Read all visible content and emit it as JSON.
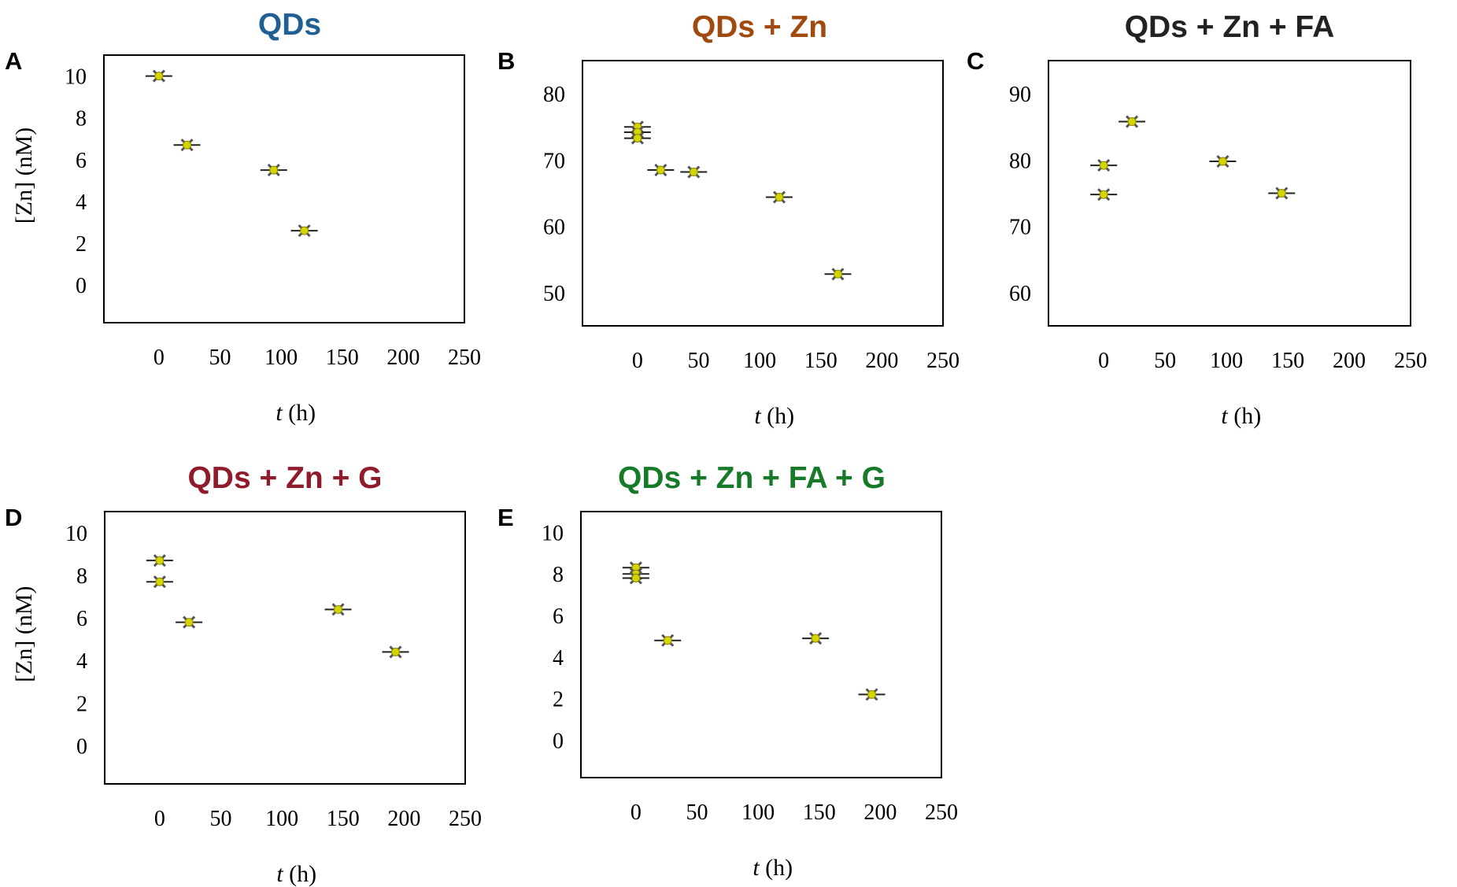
{
  "chart_data": [
    {
      "type": "scatter",
      "panel_label": "A",
      "title": "QDs",
      "title_color": "#1f5f94",
      "xlabel_var": "t",
      "xlabel_unit": " (h)",
      "ylabel": "[Zn] (nM)",
      "xticks": [
        0,
        50,
        100,
        150,
        200,
        250
      ],
      "yticks": [
        0,
        2,
        4,
        6,
        8,
        10
      ],
      "xlim": [
        -45,
        250
      ],
      "ylim": [
        -1.8,
        11
      ],
      "marker_color": "#d4d400",
      "series": [
        {
          "name": "[Zn]",
          "x": [
            0,
            23,
            94,
            119
          ],
          "y": [
            10.0,
            6.7,
            5.5,
            2.6
          ]
        }
      ]
    },
    {
      "type": "scatter",
      "panel_label": "B",
      "title": "QDs + Zn",
      "title_color": "#a14a10",
      "xlabel_var": "t",
      "xlabel_unit": " (h)",
      "ylabel": "",
      "xticks": [
        0,
        50,
        100,
        150,
        200,
        250
      ],
      "yticks": [
        50,
        60,
        70,
        80
      ],
      "xlim": [
        -45,
        250
      ],
      "ylim": [
        45,
        85
      ],
      "marker_color": "#d4d400",
      "series": [
        {
          "name": "[Zn]",
          "x": [
            0,
            0,
            0,
            19,
            46,
            116,
            164
          ],
          "y": [
            75.0,
            74.2,
            73.3,
            68.5,
            68.2,
            64.4,
            52.8
          ]
        }
      ]
    },
    {
      "type": "scatter",
      "panel_label": "C",
      "title": "QDs + Zn + FA",
      "title_color": "#222222",
      "xlabel_var": "t",
      "xlabel_unit": " (h)",
      "ylabel": "",
      "xticks": [
        0,
        50,
        100,
        150,
        200,
        250
      ],
      "yticks": [
        60,
        70,
        80,
        90
      ],
      "xlim": [
        -45,
        250
      ],
      "ylim": [
        55,
        95
      ],
      "marker_color": "#d4d400",
      "series": [
        {
          "name": "[Zn]",
          "x": [
            0,
            0,
            23,
            97,
            145
          ],
          "y": [
            79.2,
            74.8,
            85.8,
            79.8,
            75.0
          ]
        }
      ]
    },
    {
      "type": "scatter",
      "panel_label": "D",
      "title": "QDs + Zn + G",
      "title_color": "#8f1b2b",
      "xlabel_var": "t",
      "xlabel_unit": " (h)",
      "ylabel": "[Zn] (nM)",
      "xticks": [
        0,
        50,
        100,
        150,
        200,
        250
      ],
      "yticks": [
        0,
        2,
        4,
        6,
        8,
        10
      ],
      "xlim": [
        -45,
        250
      ],
      "ylim": [
        -1.8,
        11
      ],
      "marker_color": "#d4d400",
      "series": [
        {
          "name": "[Zn]",
          "x": [
            0,
            0,
            24,
            146,
            193
          ],
          "y": [
            8.7,
            7.7,
            5.8,
            6.4,
            4.4
          ]
        }
      ]
    },
    {
      "type": "scatter",
      "panel_label": "E",
      "title": "QDs + Zn + FA + G",
      "title_color": "#177a28",
      "xlabel_var": "t",
      "xlabel_unit": " (h)",
      "ylabel": "",
      "xticks": [
        0,
        50,
        100,
        150,
        200,
        250
      ],
      "yticks": [
        0,
        2,
        4,
        6,
        8,
        10
      ],
      "xlim": [
        -45,
        250
      ],
      "ylim": [
        -1.8,
        11
      ],
      "marker_color": "#d4d400",
      "series": [
        {
          "name": "[Zn]",
          "x": [
            0,
            0,
            0,
            26,
            147,
            193
          ],
          "y": [
            8.3,
            8.0,
            7.8,
            4.8,
            4.9,
            2.2
          ]
        }
      ]
    }
  ]
}
